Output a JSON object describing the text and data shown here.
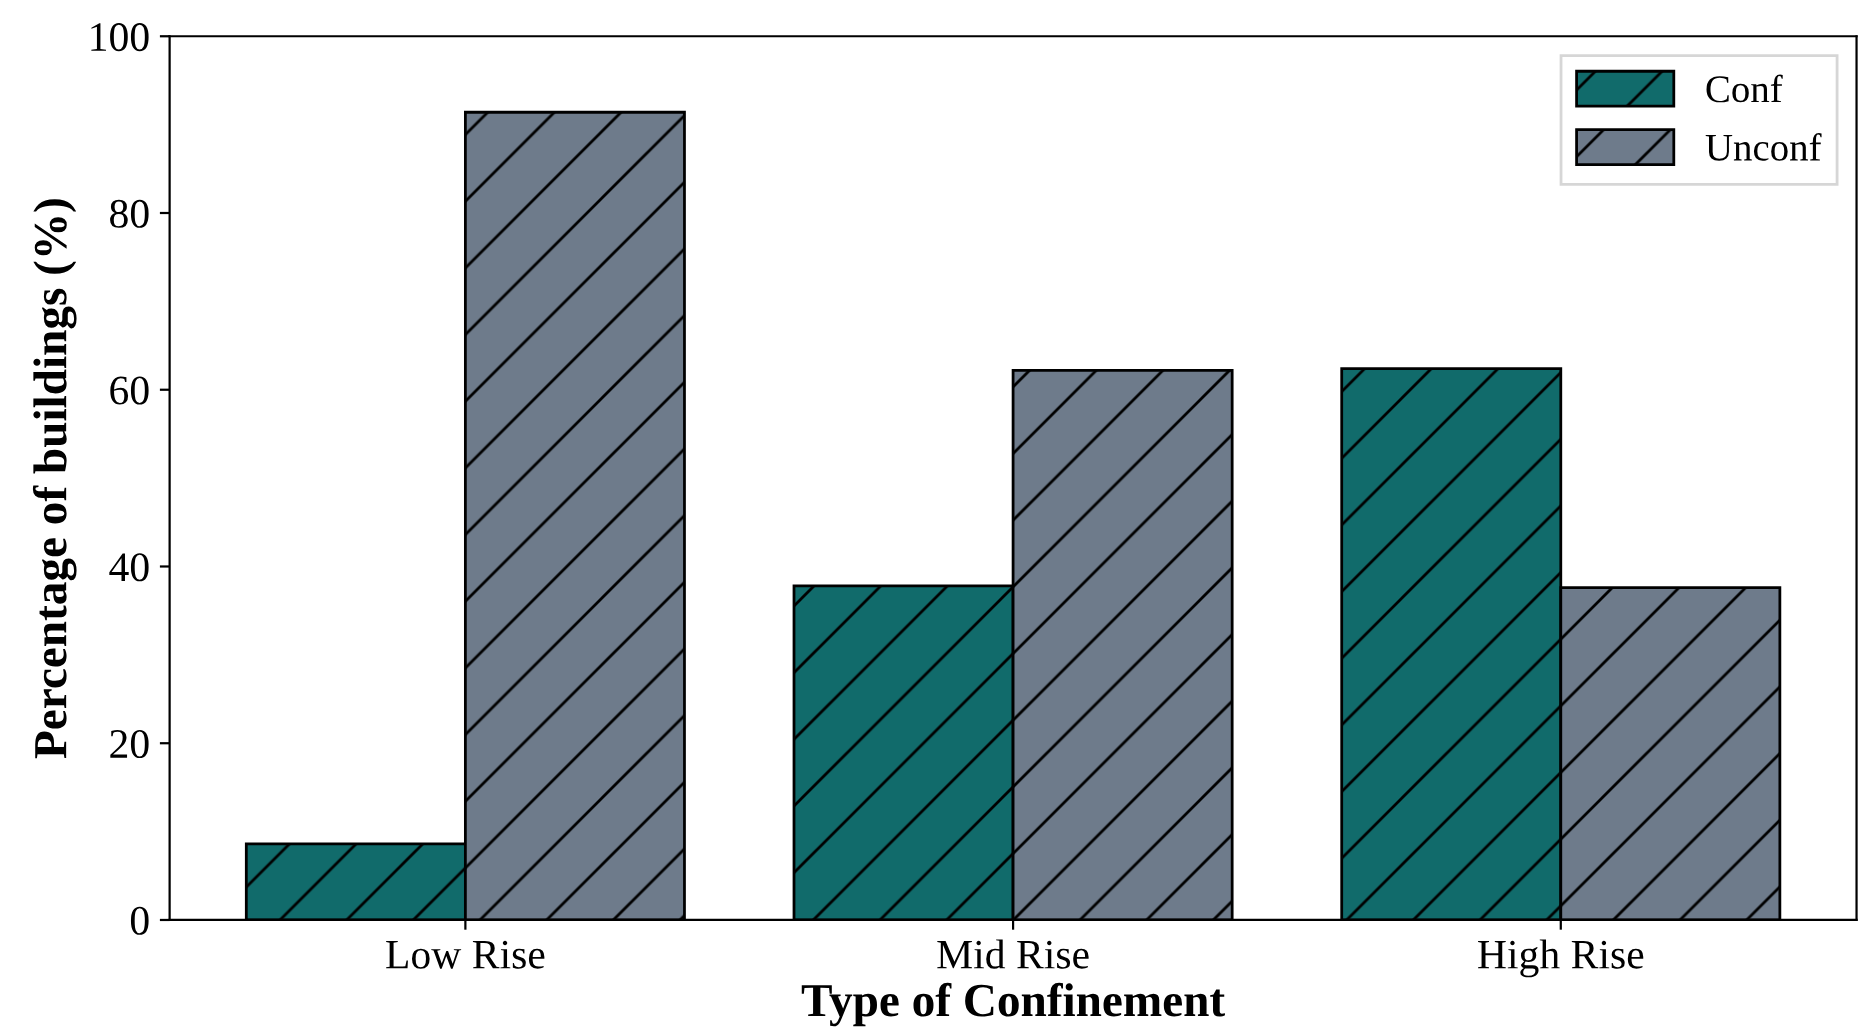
{
  "chart_data": {
    "type": "bar",
    "xlabel": "Type of Confinement",
    "ylabel": "Percentage of buildings (%)",
    "categories": [
      "Low Rise",
      "Mid Rise",
      "High Rise"
    ],
    "series": [
      {
        "name": "Conf",
        "color": "#116b6b",
        "values": [
          8.6,
          37.8,
          62.4
        ]
      },
      {
        "name": "Unconf",
        "color": "#6e7b8b",
        "values": [
          91.4,
          62.2,
          37.6
        ]
      }
    ],
    "ylim": [
      0,
      100
    ],
    "yticks": [
      0,
      20,
      40,
      60,
      80,
      100
    ],
    "grid": false,
    "legend": "top right"
  }
}
